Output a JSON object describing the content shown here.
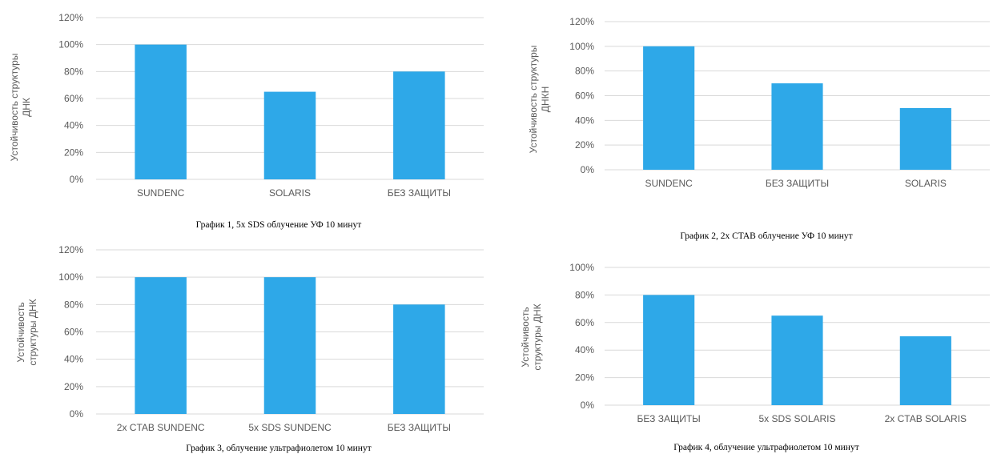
{
  "colors": {
    "bar": "#2EA8E8",
    "grid": "#d9d9d9",
    "text": "#595959"
  },
  "chart_data": [
    {
      "type": "bar",
      "caption": "График 1, 5x SDS  облучение УФ 10 минут",
      "ylabel": [
        "Устойчивость структуры",
        "ДНК"
      ],
      "categories": [
        "SUNDENC",
        "SOLARIS",
        "БЕЗ ЗАЩИТЫ"
      ],
      "values": [
        100,
        65,
        80
      ],
      "ylim": [
        0,
        120
      ],
      "yticks": [
        "0%",
        "20%",
        "40%",
        "60%",
        "80%",
        "100%",
        "120%"
      ],
      "grid": true
    },
    {
      "type": "bar",
      "caption": "График 2, 2x CTAB облучение УФ 10 минут",
      "ylabel": [
        "Устойчивость структуры",
        "ДНКН"
      ],
      "categories": [
        "SUNDENC",
        "БЕЗ ЗАЩИТЫ",
        "SOLARIS"
      ],
      "values": [
        100,
        70,
        50
      ],
      "ylim": [
        0,
        120
      ],
      "yticks": [
        "0%",
        "20%",
        "40%",
        "60%",
        "80%",
        "100%",
        "120%"
      ],
      "grid": true
    },
    {
      "type": "bar",
      "caption": "График 3, облучение ультрафиолетом 10 минут",
      "ylabel": [
        "Устойчивость",
        "структуры ДНК"
      ],
      "categories": [
        "2x CTAB SUNDENC",
        "5x SDS SUNDENC",
        "БЕЗ ЗАЩИТЫ"
      ],
      "values": [
        100,
        100,
        80
      ],
      "ylim": [
        0,
        120
      ],
      "yticks": [
        "0%",
        "20%",
        "40%",
        "60%",
        "80%",
        "100%",
        "120%"
      ],
      "grid": true
    },
    {
      "type": "bar",
      "caption": "График 4, облучение ультрафиолетом 10 минут",
      "ylabel": [
        "Устойчивость",
        "структуры ДНК"
      ],
      "categories": [
        "БЕЗ ЗАЩИТЫ",
        "5x SDS SOLARIS",
        "2x CTAB SOLARIS"
      ],
      "values": [
        80,
        65,
        50
      ],
      "ylim": [
        0,
        100
      ],
      "yticks": [
        "0%",
        "20%",
        "40%",
        "60%",
        "80%",
        "100%"
      ],
      "grid": true
    }
  ]
}
